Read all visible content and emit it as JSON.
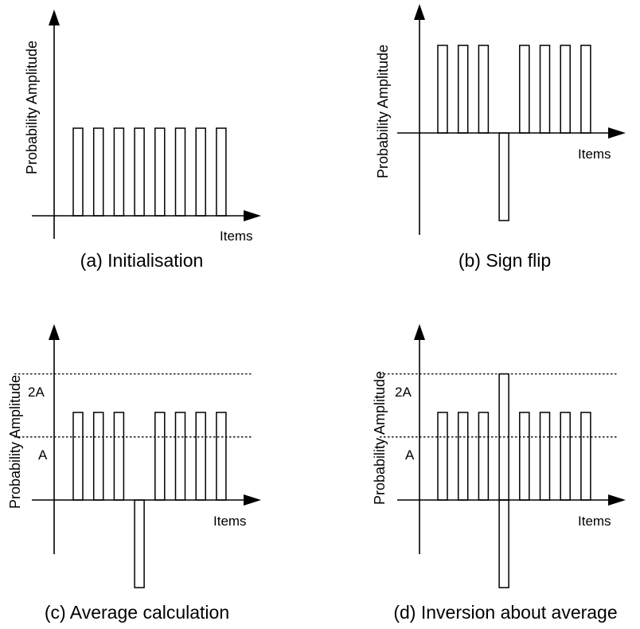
{
  "panels": [
    {
      "id": "a",
      "caption": "(a) Initialisation",
      "y_axis_label": "Probability Amplitude",
      "x_axis_label": "Items",
      "bar_values": [
        1,
        1,
        1,
        1,
        1,
        1,
        1,
        1
      ],
      "reference_lines": []
    },
    {
      "id": "b",
      "caption": "(b) Sign flip",
      "y_axis_label": "Probability Amplitude",
      "x_axis_label": "Items",
      "bar_values": [
        1,
        1,
        1,
        -1,
        1,
        1,
        1,
        1
      ],
      "reference_lines": []
    },
    {
      "id": "c",
      "caption": "(c) Average calculation",
      "y_axis_label": "Probability Amplitude",
      "x_axis_label": "Items",
      "bar_values": [
        1,
        1,
        1,
        -1,
        1,
        1,
        1,
        1
      ],
      "reference_lines": [
        {
          "label": "A",
          "value": 0.72,
          "style": "dotted"
        },
        {
          "label": "2A",
          "value": 1.44,
          "style": "dotted"
        }
      ]
    },
    {
      "id": "d",
      "caption": "(d) Inversion about average",
      "y_axis_label": "Probability Amplitude",
      "x_axis_label": "Items",
      "bar_values": [
        1,
        1,
        1,
        1.44,
        1,
        1,
        1,
        1
      ],
      "negative_bar_index": 3,
      "reference_lines": [
        {
          "label": "A",
          "value": 0.72,
          "style": "dotted"
        },
        {
          "label": "2A",
          "value": 1.44,
          "style": "dotted"
        }
      ]
    }
  ],
  "colors": {
    "stroke": "#000000",
    "background": "#ffffff"
  }
}
